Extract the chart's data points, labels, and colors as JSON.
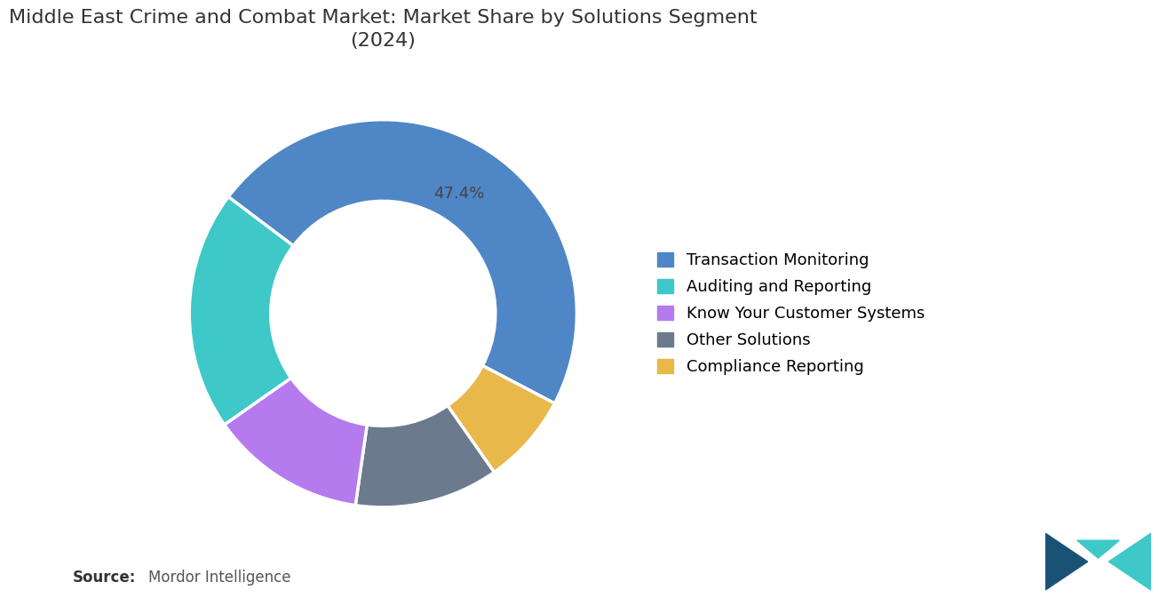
{
  "title": "Middle East Crime and Combat Market: Market Share by Solutions Segment\n(2024)",
  "segments": [
    {
      "label": "Transaction Monitoring",
      "value": 47.4,
      "color": "#4f86c6"
    },
    {
      "label": "Compliance Reporting",
      "value": 7.6,
      "color": "#e8b84b"
    },
    {
      "label": "Other Solutions",
      "value": 12.0,
      "color": "#6b7b8d"
    },
    {
      "label": "Know Your Customer Systems",
      "value": 13.0,
      "color": "#b57bee"
    },
    {
      "label": "Auditing and Reporting",
      "value": 20.0,
      "color": "#3ec8c8"
    }
  ],
  "legend_order": [
    {
      "label": "Transaction Monitoring",
      "color": "#4f86c6"
    },
    {
      "label": "Auditing and Reporting",
      "color": "#3ec8c8"
    },
    {
      "label": "Know Your Customer Systems",
      "color": "#b57bee"
    },
    {
      "label": "Other Solutions",
      "color": "#6b7b8d"
    },
    {
      "label": "Compliance Reporting",
      "color": "#e8b84b"
    }
  ],
  "label_text": "47.4%",
  "startangle": 143,
  "source_label": "Source:",
  "source_text": "Mordor Intelligence",
  "background_color": "#ffffff",
  "title_fontsize": 16,
  "legend_fontsize": 13,
  "source_fontsize": 12
}
